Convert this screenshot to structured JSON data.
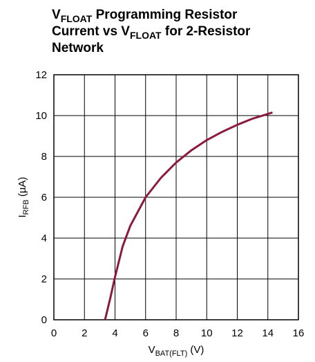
{
  "chart_data": {
    "type": "line",
    "title": [
      [
        "V",
        "FLOAT",
        " Programming Resistor"
      ],
      [
        "Current vs V",
        "FLOAT",
        " for 2-Resistor"
      ],
      [
        "Network"
      ]
    ],
    "xlabel": [
      "V",
      "BAT(FLT)",
      " (V)"
    ],
    "ylabel": [
      "I",
      "RFB",
      " (µA)"
    ],
    "x": [
      3.35,
      3.7,
      4,
      4.5,
      5,
      6,
      7,
      8,
      9,
      10,
      11,
      12,
      13,
      14.3
    ],
    "series": [
      {
        "name": "IRFB",
        "color": "#8b1a3e",
        "values": [
          0,
          1.1,
          2.1,
          3.6,
          4.6,
          6.0,
          6.95,
          7.7,
          8.3,
          8.8,
          9.2,
          9.55,
          9.85,
          10.15
        ]
      }
    ],
    "xlim": [
      0,
      16
    ],
    "xticks": [
      0,
      2,
      4,
      6,
      8,
      10,
      12,
      14,
      16
    ],
    "ylim": [
      0,
      12
    ],
    "yticks": [
      0,
      2,
      4,
      6,
      8,
      10,
      12
    ],
    "grid": true
  }
}
